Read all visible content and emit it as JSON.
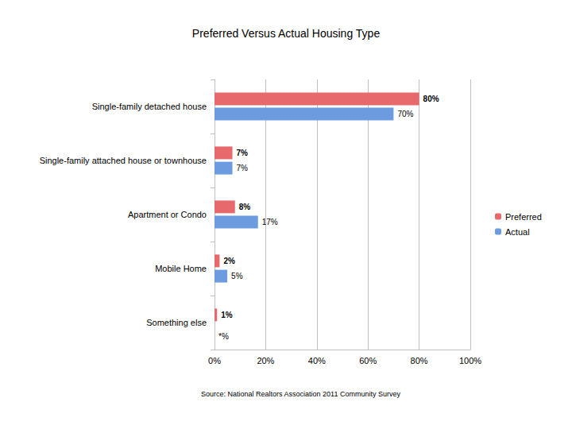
{
  "chart_data": {
    "type": "bar",
    "orientation": "horizontal",
    "title": "Preferred Versus Actual Housing Type",
    "source": "Source: National Realtors Association 2011 Community Survey",
    "categories": [
      "Single-family detached house",
      "Single-family attached house or townhouse",
      "Apartment or Condo",
      "Mobile Home",
      "Something else"
    ],
    "series": [
      {
        "name": "Preferred",
        "color": "#e8696b",
        "values": [
          80,
          7,
          8,
          2,
          1
        ],
        "value_labels": [
          "80%",
          "7%",
          "8%",
          "2%",
          "1%"
        ]
      },
      {
        "name": "Actual",
        "color": "#6c9be0",
        "values": [
          70,
          7,
          17,
          5,
          null
        ],
        "value_labels": [
          "70%",
          "7%",
          "17%",
          "5%",
          "*%"
        ]
      }
    ],
    "xlim": [
      0,
      100
    ],
    "xticks": [
      {
        "value": 0,
        "label": "0%"
      },
      {
        "value": 20,
        "label": "20%"
      },
      {
        "value": 40,
        "label": "40%"
      },
      {
        "value": 60,
        "label": "60%"
      },
      {
        "value": 80,
        "label": "80%"
      },
      {
        "value": 100,
        "label": "100%"
      }
    ],
    "grid": true,
    "legend": "right",
    "data_labels": true
  }
}
